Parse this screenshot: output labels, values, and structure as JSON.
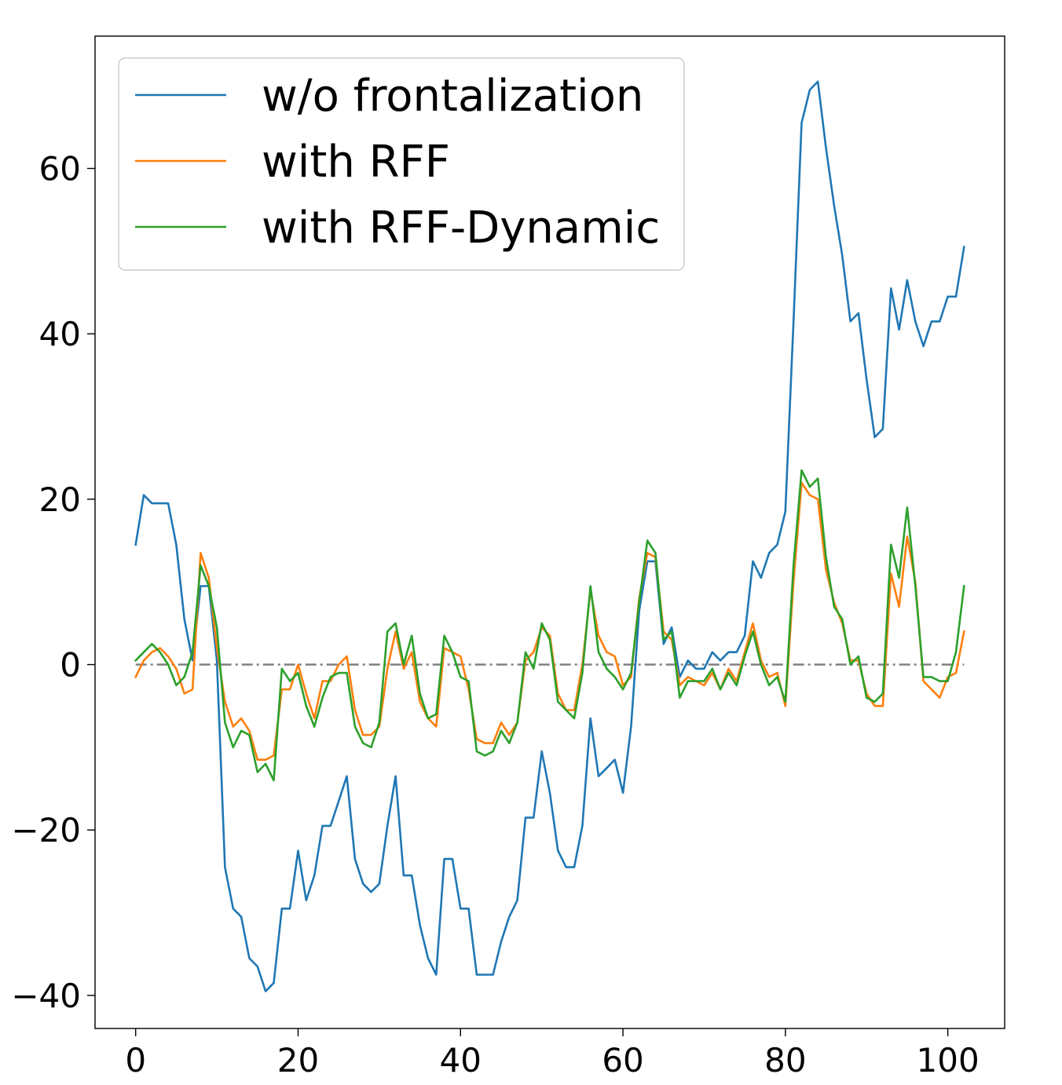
{
  "chart_data": {
    "type": "line",
    "title": "",
    "xlabel": "",
    "ylabel": "",
    "xlim": [
      -5,
      107
    ],
    "ylim": [
      -44,
      76
    ],
    "grid": false,
    "legend": {
      "placement": "upper-left"
    },
    "x_ticks": [
      0,
      20,
      40,
      60,
      80,
      100
    ],
    "x_tick_labels": [
      "0",
      "20",
      "40",
      "60",
      "80",
      "100"
    ],
    "y_ticks": [
      60,
      40,
      20,
      0,
      -20,
      -40
    ],
    "y_tick_labels": [
      "60",
      "40",
      "20",
      "0",
      "−20",
      "−40"
    ],
    "reference_line": {
      "y": 0,
      "x_start": 0,
      "x_end": 102,
      "color": "#808080",
      "style": "dash-dot"
    },
    "series": [
      {
        "name": "w/o frontalization",
        "color": "#1f77b4",
        "values": [
          14.5,
          20.5,
          19.5,
          19.5,
          19.5,
          14.5,
          5.5,
          0.5,
          9.5,
          9.5,
          0.5,
          -24.5,
          -29.5,
          -30.5,
          -35.5,
          -36.5,
          -39.5,
          -38.5,
          -29.5,
          -29.5,
          -22.5,
          -28.5,
          -25.5,
          -19.5,
          -19.5,
          -16.5,
          -13.5,
          -23.5,
          -26.5,
          -27.5,
          -26.5,
          -19.5,
          -13.5,
          -25.5,
          -25.5,
          -31.5,
          -35.5,
          -37.5,
          -23.5,
          -23.5,
          -29.5,
          -29.5,
          -37.5,
          -37.5,
          -37.5,
          -33.5,
          -30.5,
          -28.5,
          -18.5,
          -18.5,
          -10.5,
          -15.5,
          -22.5,
          -24.5,
          -24.5,
          -19.5,
          -6.5,
          -13.5,
          -12.5,
          -11.5,
          -15.5,
          -7.5,
          6.5,
          12.5,
          12.5,
          2.5,
          4.5,
          -1.5,
          0.5,
          -0.5,
          -0.5,
          1.5,
          0.5,
          1.5,
          1.5,
          3.5,
          12.5,
          10.5,
          13.5,
          14.5,
          18.5,
          41.5,
          65.5,
          69.5,
          70.5,
          62.5,
          55.5,
          49.5,
          41.5,
          42.5,
          34.5,
          27.5,
          28.5,
          45.5,
          40.5,
          46.5,
          41.5,
          38.5,
          41.5,
          41.5,
          44.5,
          44.5,
          50.5
        ]
      },
      {
        "name": "with RFF",
        "color": "#ff7f0e",
        "values": [
          -1.5,
          0.5,
          1.5,
          2.0,
          1.0,
          -0.5,
          -3.5,
          -3.0,
          13.5,
          10.5,
          2.0,
          -4.5,
          -7.5,
          -6.5,
          -8.0,
          -11.5,
          -11.5,
          -11.0,
          -3.0,
          -3.0,
          0.0,
          -3.5,
          -6.5,
          -2.0,
          -2.0,
          0.0,
          1.0,
          -5.5,
          -8.5,
          -8.5,
          -7.5,
          -0.5,
          4.0,
          -0.5,
          1.5,
          -4.5,
          -6.5,
          -7.5,
          2.0,
          1.5,
          1.0,
          -3.0,
          -9.0,
          -9.5,
          -9.5,
          -7.0,
          -8.5,
          -7.0,
          0.5,
          1.5,
          4.5,
          3.5,
          -3.5,
          -5.5,
          -5.5,
          0.0,
          9.0,
          3.5,
          1.5,
          1.0,
          -2.5,
          -1.5,
          8.0,
          13.5,
          13.0,
          4.0,
          3.0,
          -2.5,
          -1.5,
          -2.0,
          -2.5,
          -1.0,
          -3.0,
          -0.5,
          -2.0,
          1.5,
          5.0,
          0.5,
          -1.5,
          -1.0,
          -5.0,
          10.0,
          22.0,
          20.5,
          20.0,
          11.5,
          7.5,
          5.0,
          0.5,
          0.5,
          -3.5,
          -5.0,
          -5.0,
          11.0,
          7.0,
          15.5,
          10.0,
          -2.0,
          -3.0,
          -4.0,
          -1.5,
          -1.0,
          4.0
        ]
      },
      {
        "name": "with RFF-Dynamic",
        "color": "#2ca02c",
        "values": [
          0.5,
          1.5,
          2.5,
          1.5,
          0.0,
          -2.5,
          -1.5,
          1.5,
          12.0,
          9.5,
          4.5,
          -7.0,
          -10.0,
          -8.0,
          -8.5,
          -13.0,
          -12.0,
          -14.0,
          -0.5,
          -2.0,
          -1.0,
          -5.0,
          -7.5,
          -4.0,
          -1.5,
          -1.0,
          -1.0,
          -7.5,
          -9.5,
          -10.0,
          -7.0,
          4.0,
          5.0,
          0.0,
          3.5,
          -3.5,
          -6.5,
          -6.0,
          3.5,
          1.5,
          -1.5,
          -2.0,
          -10.5,
          -11.0,
          -10.5,
          -8.0,
          -9.5,
          -7.0,
          1.5,
          -0.5,
          5.0,
          3.0,
          -4.5,
          -5.5,
          -6.5,
          -1.0,
          9.5,
          1.5,
          -0.5,
          -1.5,
          -3.0,
          -1.0,
          7.5,
          15.0,
          13.5,
          3.0,
          4.0,
          -4.0,
          -2.0,
          -2.0,
          -2.0,
          -0.5,
          -3.0,
          -1.0,
          -2.5,
          1.0,
          4.0,
          0.0,
          -2.5,
          -1.5,
          -4.5,
          12.0,
          23.5,
          21.5,
          22.5,
          13.0,
          7.0,
          5.5,
          0.0,
          1.0,
          -4.0,
          -4.5,
          -3.5,
          14.5,
          10.5,
          19.0,
          9.5,
          -1.5,
          -1.5,
          -2.0,
          -2.0,
          1.5,
          9.5
        ]
      }
    ]
  }
}
